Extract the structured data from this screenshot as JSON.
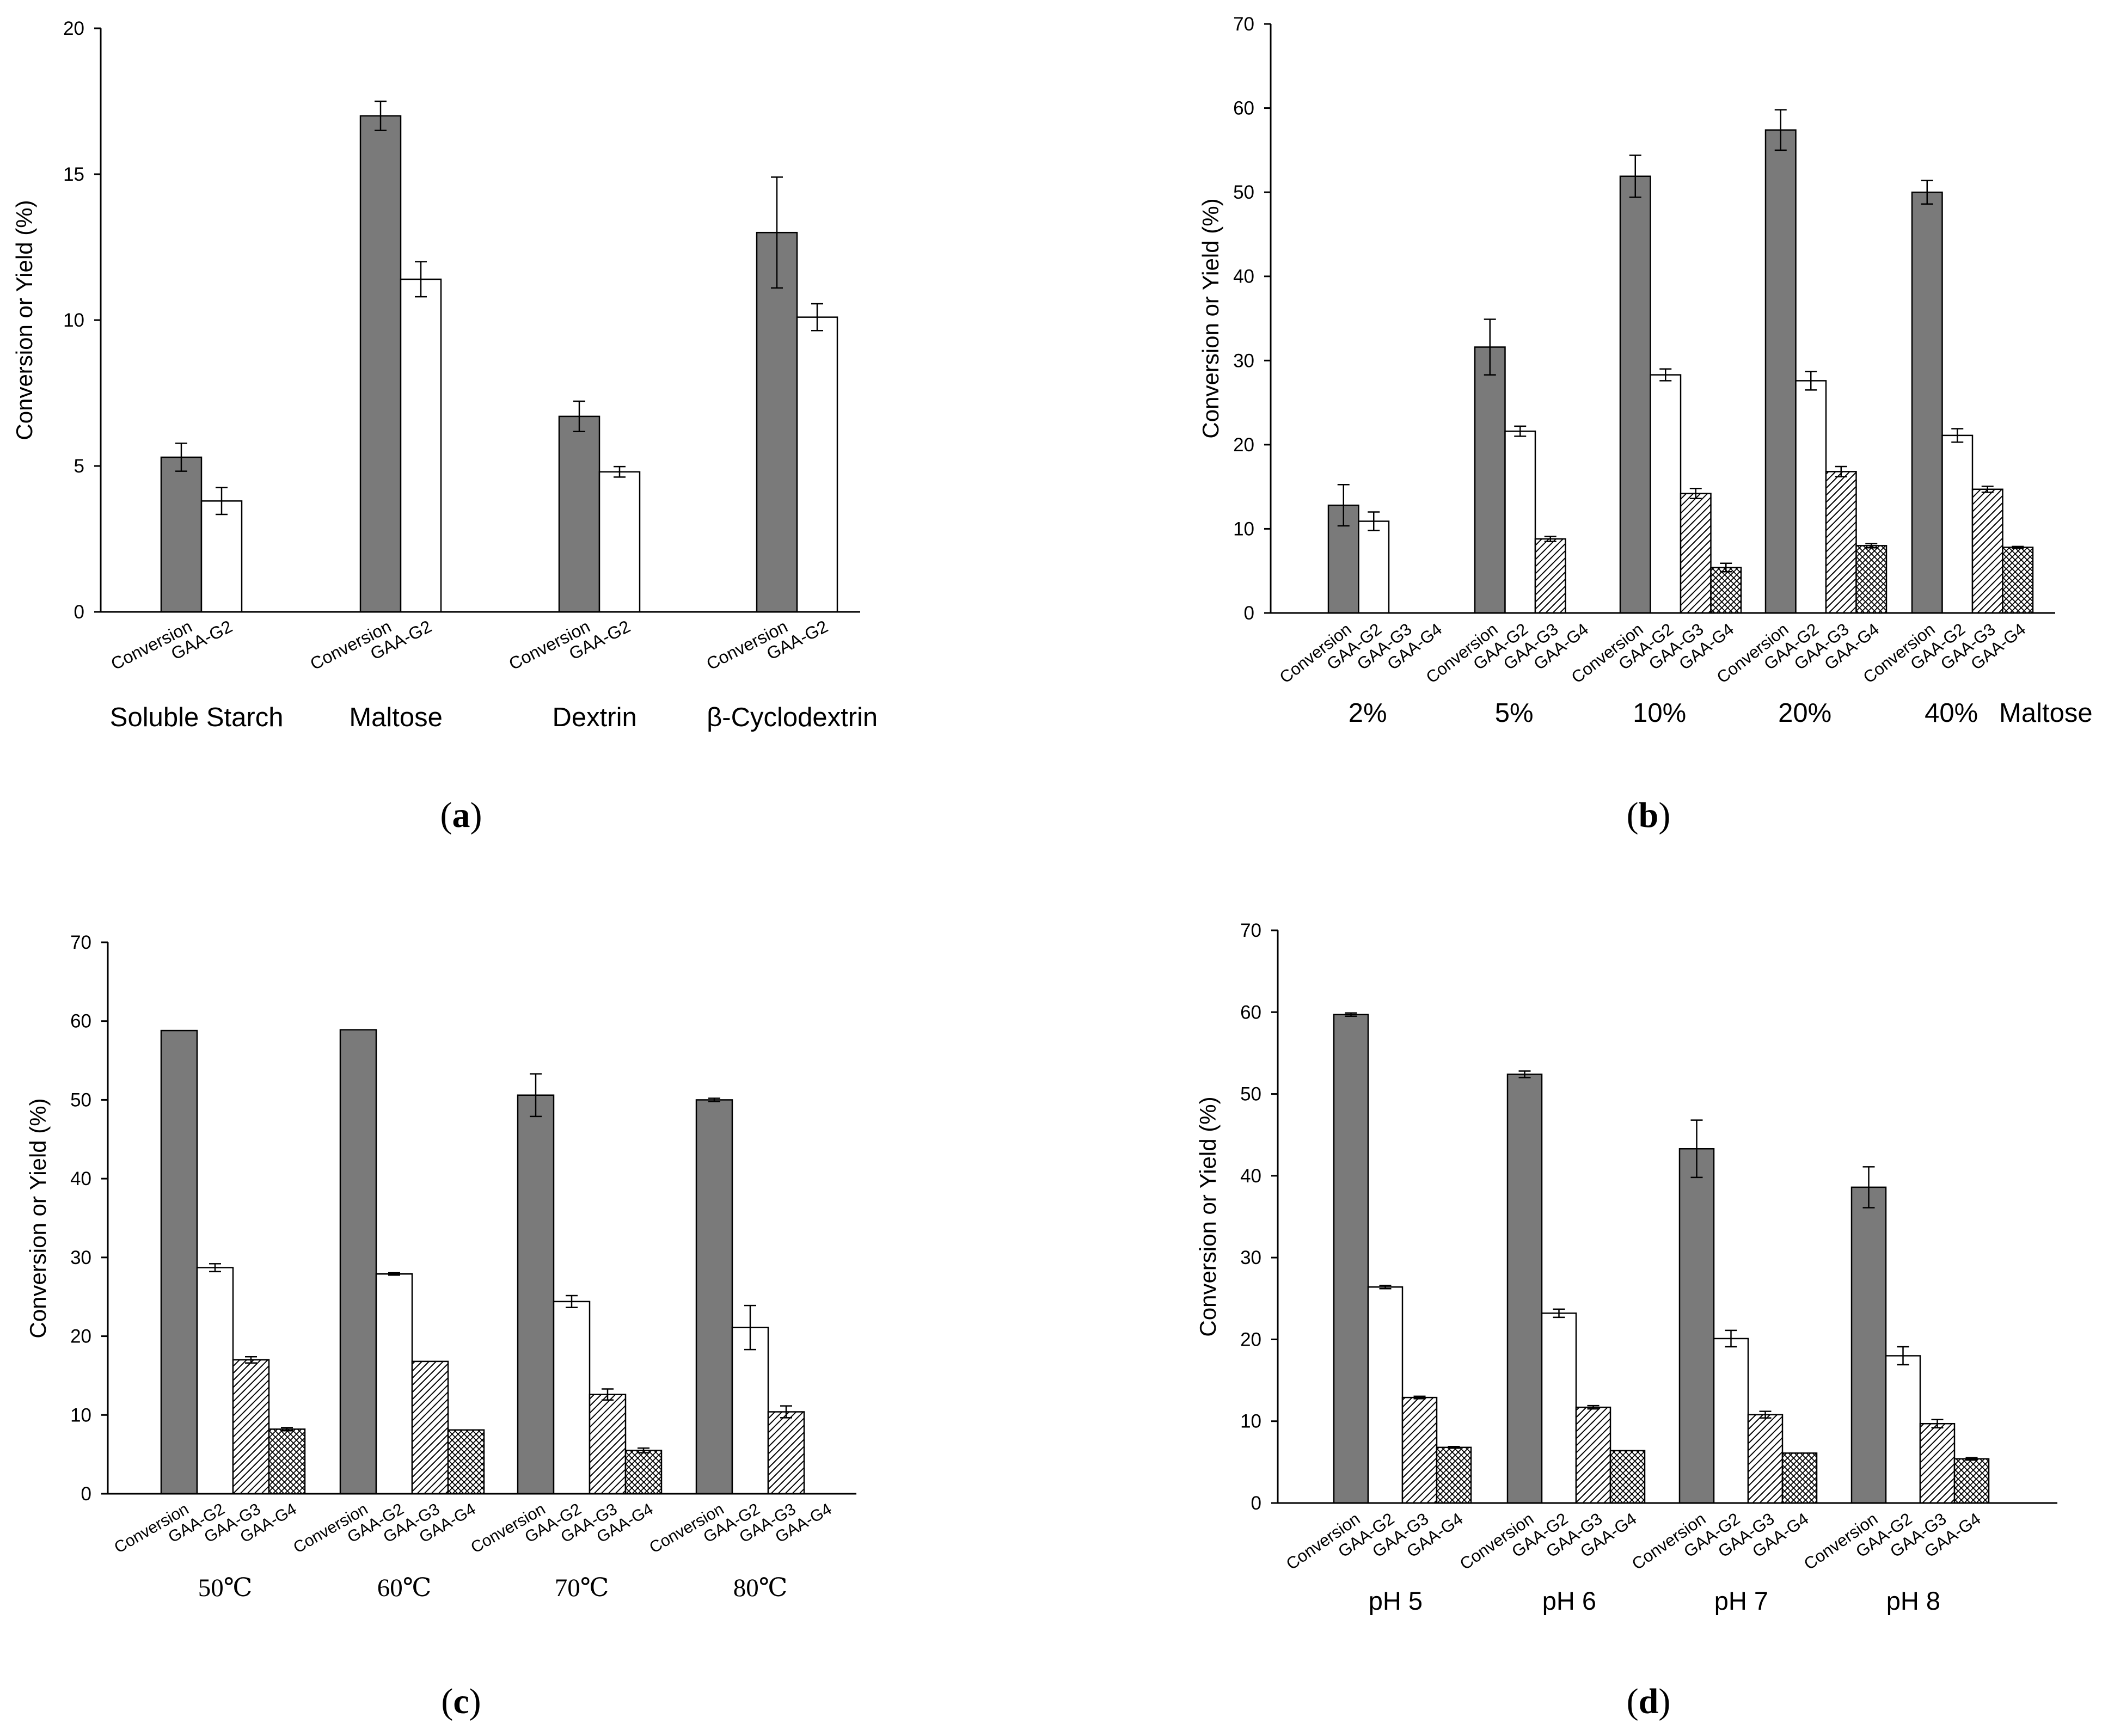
{
  "chart_data": [
    {
      "panel_label": "(a)",
      "type": "bar",
      "title": "",
      "ylabel": "Conversion or Yield (%)",
      "xlabel": "",
      "ylim": [
        0,
        20
      ],
      "yticks": [
        0,
        5,
        10,
        15,
        20
      ],
      "categories": [
        "Soluble Starch",
        "Maltose",
        "Dextrin",
        "β-Cyclodextrin"
      ],
      "series": [
        {
          "name": "Conversion",
          "fill": "#7a7a7a",
          "pattern": "solid",
          "values": [
            5.3,
            17.0,
            6.7,
            13.0
          ],
          "errors": [
            0.48,
            0.5,
            0.52,
            1.9
          ]
        },
        {
          "name": "GAA-G2",
          "fill": "#ffffff",
          "pattern": "none",
          "values": [
            3.8,
            11.4,
            4.8,
            10.1
          ],
          "errors": [
            0.46,
            0.6,
            0.18,
            0.46
          ]
        }
      ]
    },
    {
      "panel_label": "(b)",
      "type": "bar",
      "title": "",
      "ylabel": "Conversion or Yield (%)",
      "xlabel": "Maltose",
      "ylim": [
        0,
        70
      ],
      "yticks": [
        0,
        10,
        20,
        30,
        40,
        50,
        60,
        70
      ],
      "categories": [
        "2%",
        "5%",
        "10%",
        "20%",
        "40%"
      ],
      "series": [
        {
          "name": "Conversion",
          "fill": "#7a7a7a",
          "pattern": "solid",
          "values": [
            12.8,
            31.6,
            51.9,
            57.4,
            50.0
          ],
          "errors": [
            2.45,
            3.3,
            2.5,
            2.4,
            1.4
          ]
        },
        {
          "name": "GAA-G2",
          "fill": "#ffffff",
          "pattern": "none",
          "values": [
            10.9,
            21.6,
            28.3,
            27.6,
            21.1
          ],
          "errors": [
            1.1,
            0.6,
            0.7,
            1.1,
            0.8
          ]
        },
        {
          "name": "GAA-G3",
          "fill": "#ffffff",
          "pattern": "diagonal",
          "values": [
            null,
            8.8,
            14.2,
            16.8,
            14.7
          ],
          "errors": [
            null,
            0.3,
            0.6,
            0.6,
            0.35
          ]
        },
        {
          "name": "GAA-G4",
          "fill": "#ffffff",
          "pattern": "crosshatch",
          "values": [
            null,
            null,
            5.4,
            8.0,
            7.8
          ],
          "errors": [
            null,
            null,
            0.5,
            0.25,
            0.1
          ]
        }
      ]
    },
    {
      "panel_label": "(c)",
      "type": "bar",
      "title": "",
      "ylabel": "Conversion or Yield (%)",
      "xlabel": "",
      "ylim": [
        0,
        70
      ],
      "yticks": [
        0,
        10,
        20,
        30,
        40,
        50,
        60,
        70
      ],
      "categories": [
        "50℃",
        "60℃",
        "70℃",
        "80℃"
      ],
      "series": [
        {
          "name": "Conversion",
          "fill": "#7a7a7a",
          "pattern": "solid",
          "values": [
            58.8,
            58.9,
            50.6,
            50.0
          ],
          "errors": [
            null,
            null,
            2.7,
            0.2
          ]
        },
        {
          "name": "GAA-G2",
          "fill": "#ffffff",
          "pattern": "none",
          "values": [
            28.7,
            27.9,
            24.4,
            21.1
          ],
          "errors": [
            0.5,
            0.15,
            0.75,
            2.8
          ]
        },
        {
          "name": "GAA-G3",
          "fill": "#ffffff",
          "pattern": "diagonal",
          "values": [
            17.0,
            16.8,
            12.6,
            10.4
          ],
          "errors": [
            0.4,
            null,
            0.7,
            0.75
          ]
        },
        {
          "name": "GAA-G4",
          "fill": "#ffffff",
          "pattern": "crosshatch",
          "values": [
            8.2,
            8.1,
            5.5,
            null
          ],
          "errors": [
            0.2,
            null,
            0.3,
            null
          ]
        }
      ]
    },
    {
      "panel_label": "(d)",
      "type": "bar",
      "title": "",
      "ylabel": "Conversion or Yield (%)",
      "xlabel": "",
      "ylim": [
        0,
        70
      ],
      "yticks": [
        0,
        10,
        20,
        30,
        40,
        50,
        60,
        70
      ],
      "categories": [
        "pH 5",
        "pH 6",
        "pH 7",
        "pH 8"
      ],
      "series": [
        {
          "name": "Conversion",
          "fill": "#7a7a7a",
          "pattern": "solid",
          "values": [
            59.7,
            52.4,
            43.3,
            38.6
          ],
          "errors": [
            0.2,
            0.4,
            3.5,
            2.5
          ]
        },
        {
          "name": "GAA-G2",
          "fill": "#ffffff",
          "pattern": "none",
          "values": [
            26.4,
            23.2,
            20.1,
            18.0
          ],
          "errors": [
            0.2,
            0.5,
            1.0,
            1.1
          ]
        },
        {
          "name": "GAA-G3",
          "fill": "#ffffff",
          "pattern": "diagonal",
          "values": [
            12.9,
            11.7,
            10.8,
            9.7
          ],
          "errors": [
            0.15,
            0.2,
            0.4,
            0.5
          ]
        },
        {
          "name": "GAA-G4",
          "fill": "#ffffff",
          "pattern": "crosshatch",
          "values": [
            6.8,
            6.4,
            6.1,
            5.4
          ],
          "errors": [
            0.1,
            null,
            null,
            0.15
          ]
        }
      ]
    }
  ]
}
